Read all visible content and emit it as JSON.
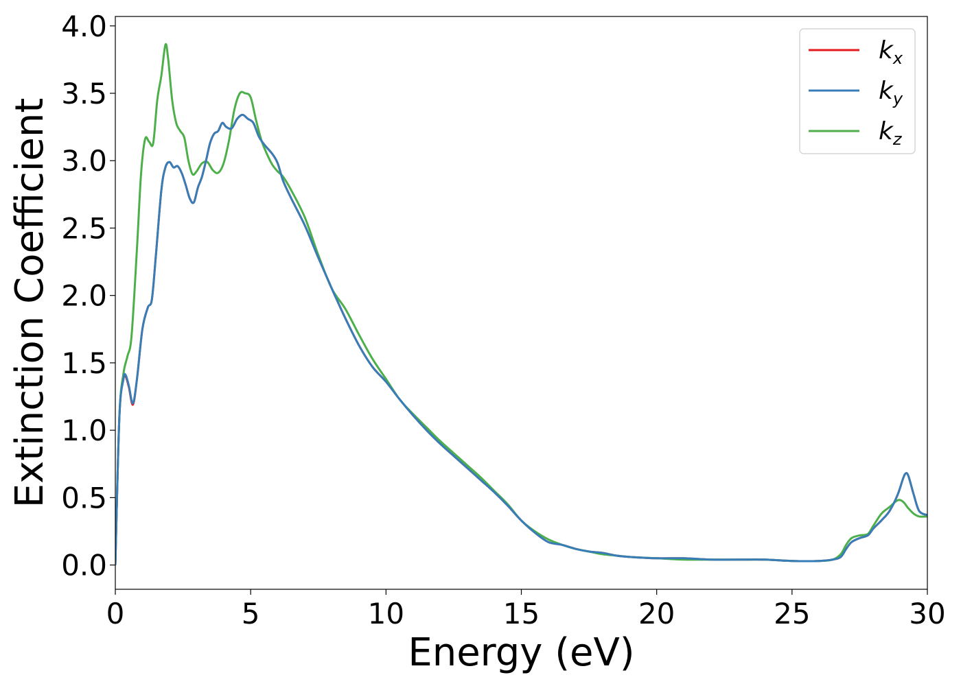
{
  "chart_data": {
    "type": "line",
    "xlabel": "Energy (eV)",
    "ylabel": "Extinction Coefficient",
    "xlim": [
      0,
      30
    ],
    "ylim": [
      -0.18,
      4.07
    ],
    "xticks": [
      0,
      5,
      10,
      15,
      20,
      25,
      30
    ],
    "xtick_labels": [
      "0",
      "5",
      "10",
      "15",
      "20",
      "25",
      "30"
    ],
    "yticks": [
      0.0,
      0.5,
      1.0,
      1.5,
      2.0,
      2.5,
      3.0,
      3.5,
      4.0
    ],
    "ytick_labels": [
      "0.0",
      "0.5",
      "1.0",
      "1.5",
      "2.0",
      "2.5",
      "3.0",
      "3.5",
      "4.0"
    ],
    "grid": false,
    "legend_position": "top-right",
    "series": [
      {
        "name": "k_x",
        "legend_main": "k",
        "legend_sub": "x",
        "color": "#e41a1c",
        "x": [
          0,
          0.15,
          0.3,
          0.38,
          0.5,
          0.65,
          0.8,
          1.0,
          1.2,
          1.35,
          1.5,
          1.7,
          1.85,
          2.0,
          2.15,
          2.3,
          2.45,
          2.6,
          2.75,
          2.9,
          3.05,
          3.2,
          3.35,
          3.5,
          3.65,
          3.8,
          3.95,
          4.1,
          4.3,
          4.5,
          4.7,
          4.9,
          5.1,
          5.3,
          5.5,
          5.8,
          6.0,
          6.2,
          6.5,
          7.0,
          7.5,
          8.0,
          8.5,
          9.0,
          9.5,
          10.0,
          10.5,
          11.0,
          11.5,
          12.0,
          12.5,
          13.0,
          13.5,
          14.0,
          14.5,
          15.0,
          15.5,
          16.0,
          16.5,
          17.0,
          17.5,
          18.0,
          18.5,
          19.0,
          20.0,
          21.0,
          22.0,
          23.0,
          24.0,
          25.0,
          26.0,
          26.5,
          26.8,
          27.0,
          27.2,
          27.5,
          27.8,
          28.0,
          28.3,
          28.6,
          28.9,
          29.1,
          29.2,
          29.3,
          29.5,
          29.7,
          30.0
        ],
        "values": [
          0.0,
          1.1,
          1.38,
          1.4,
          1.32,
          1.19,
          1.38,
          1.75,
          1.91,
          1.97,
          2.3,
          2.78,
          2.95,
          2.99,
          2.95,
          2.96,
          2.91,
          2.82,
          2.72,
          2.69,
          2.8,
          2.88,
          3.0,
          3.13,
          3.2,
          3.22,
          3.28,
          3.25,
          3.24,
          3.31,
          3.34,
          3.31,
          3.28,
          3.18,
          3.12,
          3.05,
          2.98,
          2.85,
          2.72,
          2.52,
          2.28,
          2.05,
          1.83,
          1.63,
          1.47,
          1.36,
          1.23,
          1.11,
          1.0,
          0.9,
          0.81,
          0.72,
          0.63,
          0.54,
          0.44,
          0.33,
          0.24,
          0.17,
          0.15,
          0.12,
          0.1,
          0.09,
          0.07,
          0.06,
          0.05,
          0.05,
          0.04,
          0.04,
          0.04,
          0.03,
          0.03,
          0.04,
          0.06,
          0.12,
          0.17,
          0.2,
          0.22,
          0.27,
          0.33,
          0.4,
          0.52,
          0.64,
          0.68,
          0.66,
          0.52,
          0.4,
          0.37
        ]
      },
      {
        "name": "k_y",
        "legend_main": "k",
        "legend_sub": "y",
        "color": "#377eb8",
        "x": [
          0,
          0.15,
          0.3,
          0.38,
          0.5,
          0.65,
          0.8,
          1.0,
          1.2,
          1.35,
          1.5,
          1.7,
          1.85,
          2.0,
          2.15,
          2.3,
          2.45,
          2.6,
          2.75,
          2.9,
          3.05,
          3.2,
          3.35,
          3.5,
          3.65,
          3.8,
          3.95,
          4.1,
          4.3,
          4.5,
          4.7,
          4.9,
          5.1,
          5.3,
          5.5,
          5.8,
          6.0,
          6.2,
          6.5,
          7.0,
          7.5,
          8.0,
          8.5,
          9.0,
          9.5,
          10.0,
          10.5,
          11.0,
          11.5,
          12.0,
          12.5,
          13.0,
          13.5,
          14.0,
          14.5,
          15.0,
          15.5,
          16.0,
          16.5,
          17.0,
          17.5,
          18.0,
          18.5,
          19.0,
          20.0,
          21.0,
          22.0,
          23.0,
          24.0,
          25.0,
          26.0,
          26.5,
          26.8,
          27.0,
          27.2,
          27.5,
          27.8,
          28.0,
          28.3,
          28.6,
          28.9,
          29.1,
          29.2,
          29.3,
          29.5,
          29.7,
          30.0
        ],
        "values": [
          0.0,
          1.1,
          1.38,
          1.41,
          1.33,
          1.2,
          1.38,
          1.75,
          1.91,
          1.97,
          2.3,
          2.78,
          2.95,
          2.99,
          2.95,
          2.96,
          2.91,
          2.82,
          2.72,
          2.69,
          2.8,
          2.88,
          3.0,
          3.13,
          3.2,
          3.22,
          3.28,
          3.25,
          3.24,
          3.31,
          3.34,
          3.31,
          3.28,
          3.18,
          3.12,
          3.05,
          2.98,
          2.85,
          2.72,
          2.52,
          2.28,
          2.05,
          1.83,
          1.63,
          1.47,
          1.36,
          1.23,
          1.11,
          1.0,
          0.9,
          0.81,
          0.72,
          0.63,
          0.54,
          0.44,
          0.33,
          0.24,
          0.17,
          0.15,
          0.12,
          0.1,
          0.09,
          0.07,
          0.06,
          0.05,
          0.05,
          0.04,
          0.04,
          0.04,
          0.03,
          0.03,
          0.04,
          0.06,
          0.12,
          0.17,
          0.2,
          0.22,
          0.27,
          0.33,
          0.4,
          0.52,
          0.64,
          0.68,
          0.66,
          0.52,
          0.4,
          0.37
        ]
      },
      {
        "name": "k_z",
        "legend_main": "k",
        "legend_sub": "z",
        "color": "#4daf4a",
        "x": [
          0,
          0.15,
          0.3,
          0.45,
          0.6,
          0.8,
          0.95,
          1.1,
          1.25,
          1.4,
          1.55,
          1.7,
          1.85,
          1.95,
          2.1,
          2.25,
          2.4,
          2.55,
          2.7,
          2.85,
          3.0,
          3.2,
          3.4,
          3.6,
          3.8,
          4.0,
          4.2,
          4.4,
          4.6,
          4.8,
          5.0,
          5.2,
          5.4,
          5.6,
          5.8,
          6.0,
          6.2,
          6.5,
          7.0,
          7.5,
          8.0,
          8.5,
          9.0,
          9.5,
          10.0,
          10.5,
          11.0,
          11.5,
          12.0,
          12.5,
          13.0,
          13.5,
          14.0,
          14.5,
          15.0,
          15.5,
          16.0,
          16.5,
          17.0,
          17.5,
          18.0,
          18.5,
          19.0,
          20.0,
          21.0,
          22.0,
          23.0,
          24.0,
          25.0,
          26.0,
          26.5,
          26.8,
          27.0,
          27.2,
          27.5,
          27.8,
          28.0,
          28.3,
          28.6,
          28.9,
          29.1,
          29.3,
          29.5,
          29.7,
          30.0
        ],
        "values": [
          0.0,
          1.1,
          1.42,
          1.55,
          1.7,
          2.35,
          2.9,
          3.16,
          3.14,
          3.13,
          3.45,
          3.63,
          3.86,
          3.76,
          3.45,
          3.28,
          3.22,
          3.17,
          3.0,
          2.9,
          2.92,
          2.98,
          2.99,
          2.93,
          2.91,
          2.98,
          3.15,
          3.38,
          3.5,
          3.5,
          3.47,
          3.3,
          3.15,
          3.05,
          2.97,
          2.92,
          2.88,
          2.78,
          2.58,
          2.3,
          2.05,
          1.9,
          1.71,
          1.53,
          1.38,
          1.23,
          1.12,
          1.02,
          0.92,
          0.83,
          0.74,
          0.65,
          0.55,
          0.45,
          0.33,
          0.25,
          0.19,
          0.15,
          0.12,
          0.1,
          0.08,
          0.07,
          0.06,
          0.05,
          0.04,
          0.04,
          0.04,
          0.04,
          0.03,
          0.03,
          0.04,
          0.08,
          0.15,
          0.2,
          0.22,
          0.23,
          0.29,
          0.38,
          0.43,
          0.48,
          0.47,
          0.42,
          0.38,
          0.36,
          0.36
        ]
      }
    ]
  }
}
